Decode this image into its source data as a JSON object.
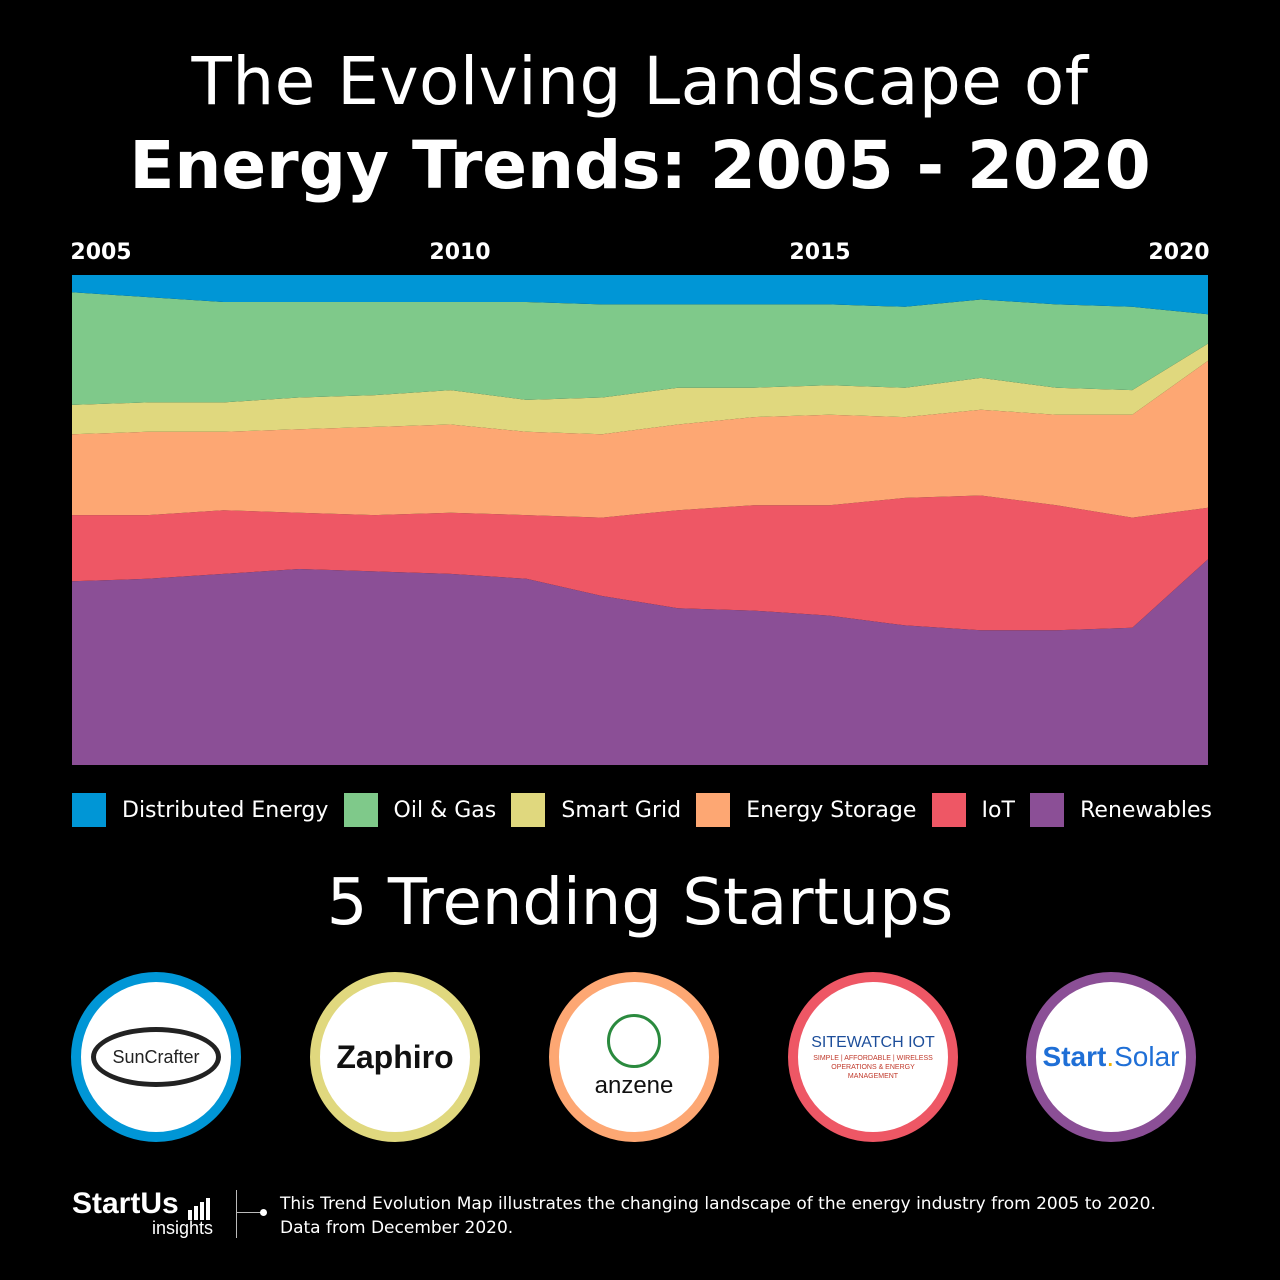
{
  "title": {
    "line1": "The Evolving Landscape of",
    "line2": "Energy Trends: 2005 - 2020"
  },
  "chart_data": {
    "type": "area",
    "stacking": "percent",
    "x": [
      2005,
      2006,
      2007,
      2008,
      2009,
      2010,
      2011,
      2012,
      2013,
      2014,
      2015,
      2016,
      2017,
      2018,
      2019,
      2020
    ],
    "xticks": [
      "2005",
      "2010",
      "2015",
      "2020"
    ],
    "ylim": [
      0,
      100
    ],
    "legend_position": "bottom",
    "series": [
      {
        "name": "Renewables",
        "color": "#8B4F96",
        "values": [
          37.5,
          38.0,
          39.0,
          40.0,
          39.5,
          39.0,
          38.0,
          34.5,
          32.0,
          31.5,
          30.5,
          28.5,
          27.5,
          27.5,
          28.0,
          42.0
        ]
      },
      {
        "name": "IoT",
        "color": "#EE5765",
        "values": [
          13.5,
          13.0,
          13.0,
          11.5,
          11.5,
          12.5,
          13.0,
          16.0,
          20.0,
          21.5,
          22.5,
          26.0,
          27.5,
          25.5,
          22.5,
          10.5
        ]
      },
      {
        "name": "Energy Storage",
        "color": "#FDA773",
        "values": [
          16.5,
          17.0,
          16.0,
          17.0,
          18.0,
          18.0,
          17.0,
          17.0,
          17.5,
          18.0,
          18.5,
          16.5,
          17.5,
          18.5,
          21.0,
          30.0
        ]
      },
      {
        "name": "Smart Grid",
        "color": "#E0D87E",
        "values": [
          6.0,
          6.0,
          6.0,
          6.5,
          6.5,
          7.0,
          6.5,
          7.5,
          7.5,
          6.0,
          6.0,
          6.0,
          6.5,
          5.5,
          5.0,
          3.5
        ]
      },
      {
        "name": "Oil & Gas",
        "color": "#7FC98A",
        "values": [
          23.0,
          21.5,
          20.5,
          19.5,
          19.0,
          18.0,
          20.0,
          19.0,
          17.0,
          17.0,
          16.5,
          16.5,
          16.0,
          17.0,
          17.0,
          6.0
        ]
      },
      {
        "name": "Distributed Energy",
        "color": "#0096D6",
        "values": [
          3.5,
          4.5,
          5.5,
          5.5,
          5.5,
          5.5,
          5.5,
          6.0,
          6.0,
          6.0,
          6.0,
          6.5,
          5.0,
          6.0,
          6.5,
          8.0
        ]
      }
    ]
  },
  "legend": [
    {
      "label": "Distributed Energy",
      "color": "#0096D6"
    },
    {
      "label": "Oil & Gas",
      "color": "#7FC98A"
    },
    {
      "label": "Smart Grid",
      "color": "#E0D87E"
    },
    {
      "label": "Energy Storage",
      "color": "#FDA773"
    },
    {
      "label": "IoT",
      "color": "#EE5765"
    },
    {
      "label": "Renewables",
      "color": "#8B4F96"
    }
  ],
  "startups_title": "5 Trending Startups",
  "startups": [
    {
      "name": "SunCrafter",
      "ring_color": "#0096D6",
      "icon": "suncrafter-logo"
    },
    {
      "name": "Zaphiro",
      "ring_color": "#E0D87E",
      "icon": "zaphiro-logo"
    },
    {
      "name": "anzene",
      "ring_color": "#FDA773",
      "icon": "anzene-logo"
    },
    {
      "name": "SITEWATCH IOT",
      "sub": "SIMPLE | AFFORDABLE | WIRELESS OPERATIONS & ENERGY MANAGEMENT",
      "ring_color": "#EE5765",
      "icon": "sitewatch-logo"
    },
    {
      "name_start": "Start",
      "name_dot": ".",
      "name_end": "Solar",
      "ring_color": "#8B4F96",
      "icon": "startsolar-logo"
    }
  ],
  "footer": {
    "brand": "StartUs",
    "brand_sub": "insights",
    "note_line1": "This Trend Evolution Map illustrates the changing landscape of the energy industry from 2005 to 2020.",
    "note_line2": "Data from December 2020."
  }
}
